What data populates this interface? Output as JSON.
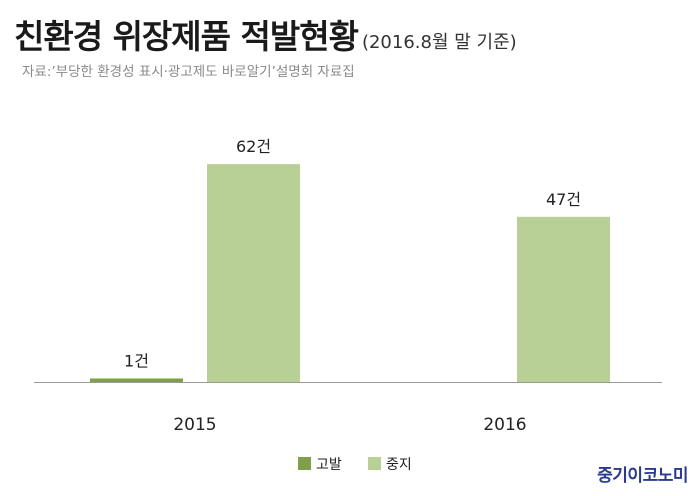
{
  "header": {
    "title": "친환경 위장제품 적발현황",
    "subtitle": "(2016.8월 말 기준)",
    "source": "자료:’부당한 환경성 표시·광고제도 바로알기’설명회 자료집"
  },
  "brand": "중기이코노미",
  "chart_data": {
    "type": "bar",
    "categories": [
      "2015",
      "2016"
    ],
    "series": [
      {
        "name": "고발",
        "values": [
          1,
          0
        ],
        "labels": [
          "1건",
          ""
        ],
        "color": "#7f9f4a"
      },
      {
        "name": "중지",
        "values": [
          62,
          47
        ],
        "labels": [
          "62건",
          "47건"
        ],
        "color": "#b8cf96"
      }
    ],
    "ylim": [
      0,
      70
    ],
    "grid": false,
    "legend_position": "bottom"
  }
}
